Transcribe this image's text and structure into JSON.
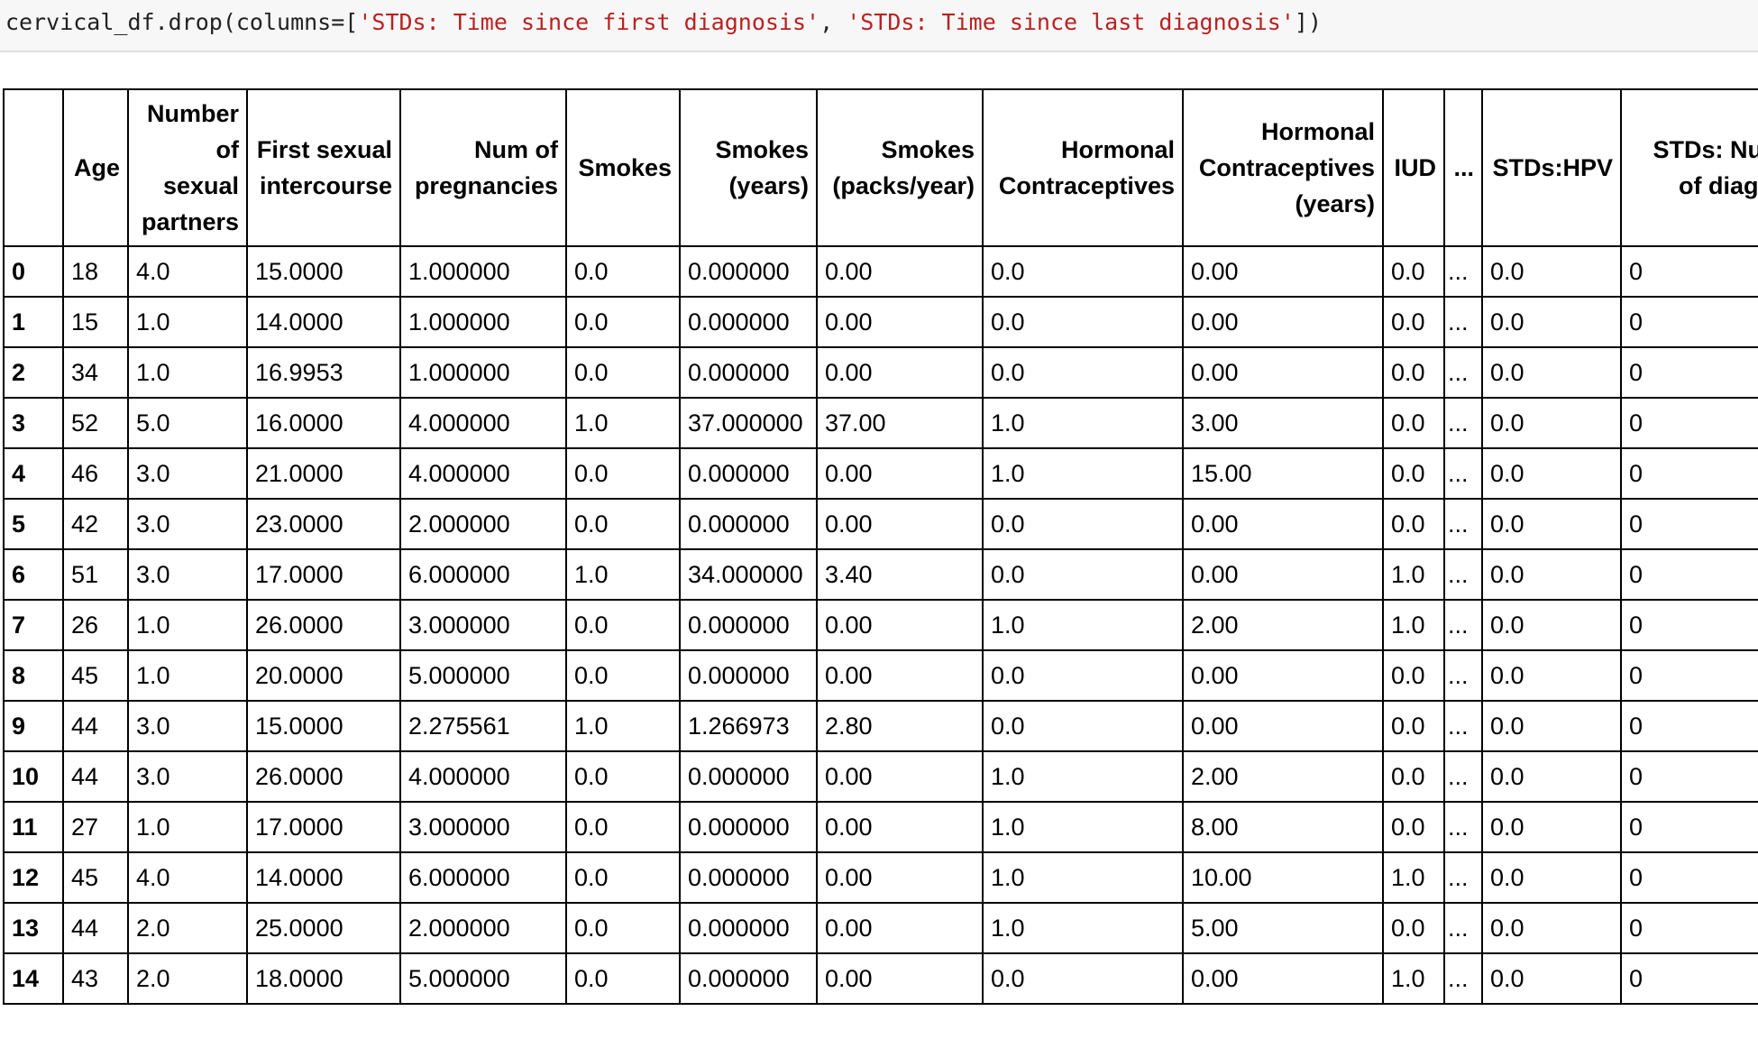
{
  "code": {
    "prefix": "cervical_df.drop(columns=[",
    "arg1": "'STDs: Time since first diagnosis'",
    "sep": ", ",
    "arg2": "'STDs: Time since last diagnosis'",
    "suffix": "])"
  },
  "table": {
    "headers": [
      "",
      "Age",
      "Number of sexual partners",
      "First sexual intercourse",
      "Num of pregnancies",
      "Smokes",
      "Smokes (years)",
      "Smokes (packs/year)",
      "Hormonal Contraceptives",
      "Hormonal Contraceptives (years)",
      "IUD",
      "...",
      "STDs:HPV",
      "STDs: Number of diagnosis"
    ],
    "rows": [
      [
        "0",
        "18",
        "4.0",
        "15.0000",
        "1.000000",
        "0.0",
        "0.000000",
        "0.00",
        "0.0",
        "0.00",
        "0.0",
        "...",
        "0.0",
        "0"
      ],
      [
        "1",
        "15",
        "1.0",
        "14.0000",
        "1.000000",
        "0.0",
        "0.000000",
        "0.00",
        "0.0",
        "0.00",
        "0.0",
        "...",
        "0.0",
        "0"
      ],
      [
        "2",
        "34",
        "1.0",
        "16.9953",
        "1.000000",
        "0.0",
        "0.000000",
        "0.00",
        "0.0",
        "0.00",
        "0.0",
        "...",
        "0.0",
        "0"
      ],
      [
        "3",
        "52",
        "5.0",
        "16.0000",
        "4.000000",
        "1.0",
        "37.000000",
        "37.00",
        "1.0",
        "3.00",
        "0.0",
        "...",
        "0.0",
        "0"
      ],
      [
        "4",
        "46",
        "3.0",
        "21.0000",
        "4.000000",
        "0.0",
        "0.000000",
        "0.00",
        "1.0",
        "15.00",
        "0.0",
        "...",
        "0.0",
        "0"
      ],
      [
        "5",
        "42",
        "3.0",
        "23.0000",
        "2.000000",
        "0.0",
        "0.000000",
        "0.00",
        "0.0",
        "0.00",
        "0.0",
        "...",
        "0.0",
        "0"
      ],
      [
        "6",
        "51",
        "3.0",
        "17.0000",
        "6.000000",
        "1.0",
        "34.000000",
        "3.40",
        "0.0",
        "0.00",
        "1.0",
        "...",
        "0.0",
        "0"
      ],
      [
        "7",
        "26",
        "1.0",
        "26.0000",
        "3.000000",
        "0.0",
        "0.000000",
        "0.00",
        "1.0",
        "2.00",
        "1.0",
        "...",
        "0.0",
        "0"
      ],
      [
        "8",
        "45",
        "1.0",
        "20.0000",
        "5.000000",
        "0.0",
        "0.000000",
        "0.00",
        "0.0",
        "0.00",
        "0.0",
        "...",
        "0.0",
        "0"
      ],
      [
        "9",
        "44",
        "3.0",
        "15.0000",
        "2.275561",
        "1.0",
        "1.266973",
        "2.80",
        "0.0",
        "0.00",
        "0.0",
        "...",
        "0.0",
        "0"
      ],
      [
        "10",
        "44",
        "3.0",
        "26.0000",
        "4.000000",
        "0.0",
        "0.000000",
        "0.00",
        "1.0",
        "2.00",
        "0.0",
        "...",
        "0.0",
        "0"
      ],
      [
        "11",
        "27",
        "1.0",
        "17.0000",
        "3.000000",
        "0.0",
        "0.000000",
        "0.00",
        "1.0",
        "8.00",
        "0.0",
        "...",
        "0.0",
        "0"
      ],
      [
        "12",
        "45",
        "4.0",
        "14.0000",
        "6.000000",
        "0.0",
        "0.000000",
        "0.00",
        "1.0",
        "10.00",
        "1.0",
        "...",
        "0.0",
        "0"
      ],
      [
        "13",
        "44",
        "2.0",
        "25.0000",
        "2.000000",
        "0.0",
        "0.000000",
        "0.00",
        "1.0",
        "5.00",
        "0.0",
        "...",
        "0.0",
        "0"
      ],
      [
        "14",
        "43",
        "2.0",
        "18.0000",
        "5.000000",
        "0.0",
        "0.000000",
        "0.00",
        "0.0",
        "0.00",
        "1.0",
        "...",
        "0.0",
        "0"
      ]
    ]
  }
}
